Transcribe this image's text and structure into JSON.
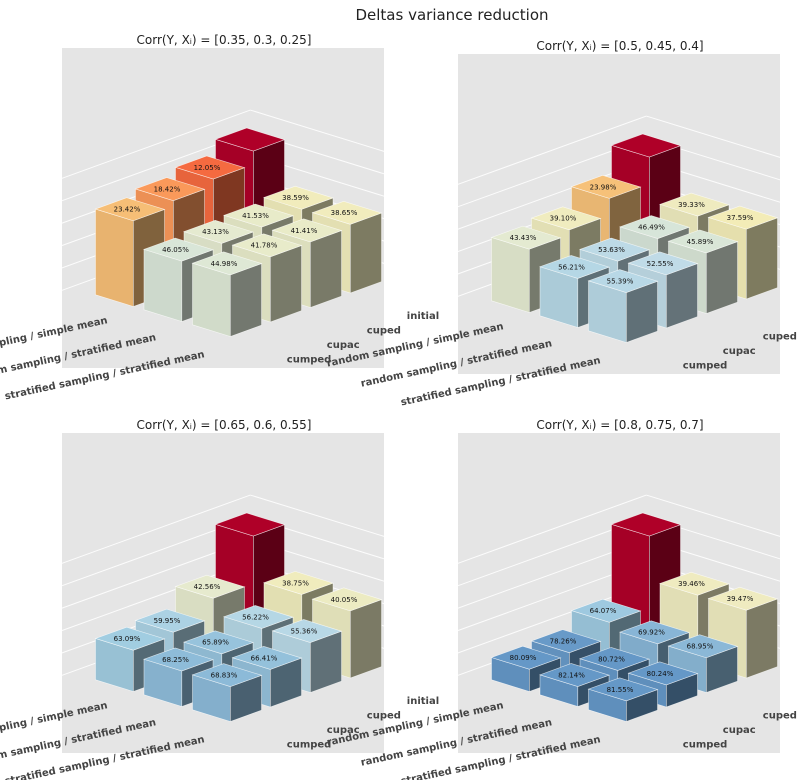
{
  "figure": {
    "title": "Deltas variance reduction"
  },
  "colors": {
    "panel_bg": "#e5e5e5",
    "grid": "#ffffff"
  },
  "chart_data": [
    {
      "type": "bar3d",
      "title": "Corr(Y, Xᵢ) = [0.35, 0.3, 0.25]",
      "x_categories": [
        "random sampling / simple mean",
        "random sampling / stratified mean",
        "stratified sampling / stratified mean"
      ],
      "y_categories": [
        "cumped",
        "cupac",
        "cuped",
        "initial"
      ],
      "z_ticks": [
        "0",
        "200",
        "400",
        "600",
        "800",
        "1000"
      ],
      "zlim": [
        0,
        1000
      ],
      "initial_value": 1000,
      "reductions": [
        [
          "23.42%",
          "18.42%",
          "12.05%"
        ],
        [
          "46.05%",
          "43.13%",
          "41.53%",
          "38.59%"
        ],
        [
          "44.98%",
          "41.78%",
          "41.41%",
          "38.65%"
        ]
      ],
      "reductions_order": "rows are x categories; within a row values run from the cumped column toward initial; the initial column of x=0 carries no label"
    },
    {
      "type": "bar3d",
      "title": "Corr(Y, Xᵢ) = [0.5, 0.45, 0.4]",
      "x_categories": [
        "random sampling / simple mean",
        "random sampling / stratified mean",
        "stratified sampling / stratified mean"
      ],
      "y_categories": [
        "cumped",
        "cupac",
        "cuped",
        "initial"
      ],
      "z_ticks": [
        "0",
        "200",
        "400",
        "600",
        "800",
        "1000"
      ],
      "zlim": [
        0,
        1000
      ],
      "initial_value": 1000,
      "reductions": [
        [
          "43.43%",
          "39.10%",
          "23.98%"
        ],
        [
          "56.21%",
          "53.63%",
          "46.49%",
          "39.33%"
        ],
        [
          "55.39%",
          "52.55%",
          "45.89%",
          "37.59%"
        ]
      ]
    },
    {
      "type": "bar3d",
      "title": "Corr(Y, Xᵢ) = [0.65, 0.6, 0.55]",
      "x_categories": [
        "random sampling / simple mean",
        "random sampling / stratified mean",
        "stratified sampling / stratified mean"
      ],
      "y_categories": [
        "cumped",
        "cupac",
        "cuped",
        "initial"
      ],
      "z_ticks": [
        "0",
        "200",
        "400",
        "600",
        "800",
        "1000"
      ],
      "zlim": [
        0,
        1000
      ],
      "initial_value": 1000,
      "reductions": [
        [
          "63.09%",
          "59.95%",
          "42.56%"
        ],
        [
          "68.25%",
          "65.89%",
          "56.22%",
          "38.75%"
        ],
        [
          "68.83%",
          "66.41%",
          "55.36%",
          "40.05%"
        ]
      ]
    },
    {
      "type": "bar3d",
      "title": "Corr(Y, Xᵢ) = [0.8, 0.75, 0.7]",
      "x_categories": [
        "random sampling / simple mean",
        "random sampling / stratified mean",
        "stratified sampling / stratified mean"
      ],
      "y_categories": [
        "cumped",
        "cupac",
        "cuped",
        "initial"
      ],
      "z_ticks": [
        "0",
        "200",
        "400",
        "600",
        "800",
        "1000"
      ],
      "zlim": [
        0,
        1000
      ],
      "initial_value": 1000,
      "reductions": [
        [
          "80.09%",
          "78.26%",
          "64.07%"
        ],
        [
          "82.14%",
          "80.72%",
          "69.92%",
          "39.46%"
        ],
        [
          "81.55%",
          "80.24%",
          "68.95%",
          "39.47%"
        ]
      ]
    }
  ]
}
